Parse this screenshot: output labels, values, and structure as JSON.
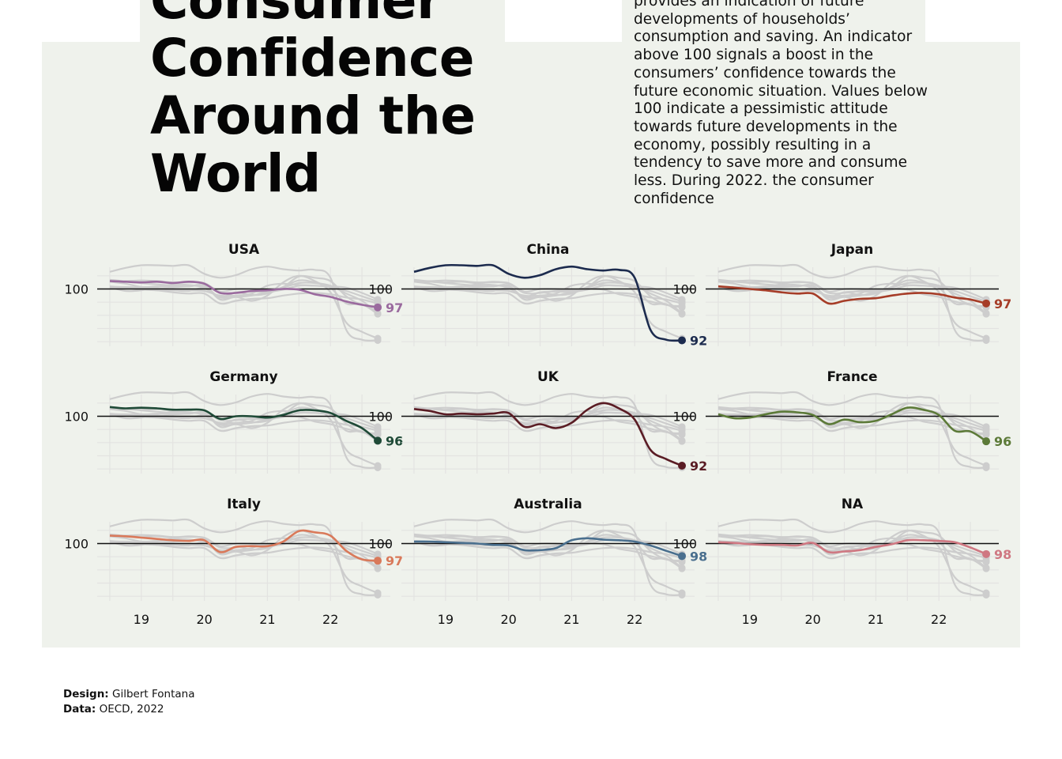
{
  "title": "Consumer Confidence Around the World",
  "description": "provides an indication of future developments of households’ consumption and saving. An indicator above 100 signals a boost in the consumers’ confidence towards the future economic situation. Values below 100 indicate a pessimistic attitude towards future developments in the economy, possibly resulting in a tendency to save more and consume less. During 2022. the consumer confidence",
  "credits": {
    "design_label": "Design:",
    "design_value": "Gilbert Fontana",
    "data_label": "Data:",
    "data_value": "OECD, 2022"
  },
  "colors": {
    "background": "#eff2ec",
    "context_lines": "#cdcdcd",
    "reference_line": "#111111",
    "USA": "#9a6a9e",
    "China": "#1c2b4e",
    "Japan": "#a63d28",
    "Germany": "#1f4a37",
    "UK": "#5a1c24",
    "France": "#5c7a38",
    "Italy": "#d9795a",
    "Australia": "#4a6f8e",
    "NA": "#cf7882"
  },
  "chart_data": {
    "type": "line",
    "layout": "small-multiples",
    "x": [
      2018.5,
      2018.75,
      2019.0,
      2019.25,
      2019.5,
      2019.75,
      2020.0,
      2020.25,
      2020.5,
      2020.75,
      2021.0,
      2021.25,
      2021.5,
      2021.75,
      2022.0,
      2022.25,
      2022.5,
      2022.75
    ],
    "x_ticks": [
      2019,
      2020,
      2021,
      2022
    ],
    "x_tick_labels": [
      "19",
      "20",
      "21",
      "22"
    ],
    "xlim": [
      2018.3,
      2022.95
    ],
    "y_ticks": [
      100
    ],
    "y_tick_labels": [
      "100"
    ],
    "ylim": [
      91.3,
      103.3
    ],
    "reference_line": 100,
    "grid": true,
    "series": [
      {
        "name": "USA",
        "end_label": "97",
        "values": [
          101.2,
          101.1,
          101.0,
          101.1,
          100.9,
          101.1,
          100.8,
          99.4,
          99.4,
          99.7,
          99.8,
          100.0,
          99.9,
          99.2,
          98.8,
          98.1,
          97.6,
          97.2
        ]
      },
      {
        "name": "China",
        "end_label": "92",
        "values": [
          102.6,
          103.2,
          103.6,
          103.6,
          103.5,
          103.6,
          102.3,
          101.7,
          102.1,
          103.0,
          103.4,
          103.0,
          102.8,
          102.9,
          101.7,
          93.8,
          92.3,
          92.2
        ]
      },
      {
        "name": "Japan",
        "end_label": "97",
        "values": [
          100.4,
          100.2,
          100.0,
          99.8,
          99.5,
          99.3,
          99.3,
          97.8,
          98.2,
          98.5,
          98.6,
          99.0,
          99.3,
          99.4,
          99.2,
          98.7,
          98.4,
          97.8
        ]
      },
      {
        "name": "Germany",
        "end_label": "96",
        "values": [
          101.4,
          101.2,
          101.3,
          101.2,
          101.0,
          101.0,
          100.9,
          99.6,
          100.0,
          100.0,
          99.8,
          100.2,
          100.9,
          100.9,
          100.5,
          99.3,
          98.2,
          96.3
        ]
      },
      {
        "name": "UK",
        "end_label": "92",
        "values": [
          101.1,
          100.8,
          100.3,
          100.4,
          100.3,
          100.4,
          100.5,
          98.4,
          98.8,
          98.2,
          99.0,
          101.0,
          102.0,
          101.2,
          99.5,
          94.9,
          93.5,
          92.5
        ]
      },
      {
        "name": "France",
        "end_label": "96",
        "values": [
          100.3,
          99.7,
          99.8,
          100.3,
          100.7,
          100.6,
          100.2,
          98.8,
          99.5,
          99.1,
          99.3,
          100.3,
          101.3,
          101.0,
          100.2,
          97.8,
          97.7,
          96.2
        ]
      },
      {
        "name": "Italy",
        "end_label": "97",
        "values": [
          101.2,
          101.1,
          100.9,
          100.7,
          100.5,
          100.4,
          100.5,
          98.7,
          99.5,
          99.6,
          99.6,
          100.3,
          101.9,
          101.7,
          101.2,
          98.9,
          97.6,
          97.4
        ]
      },
      {
        "name": "Australia",
        "end_label": "98",
        "values": [
          100.3,
          100.3,
          100.2,
          100.1,
          100.0,
          99.8,
          99.7,
          99.0,
          99.0,
          99.3,
          100.5,
          100.8,
          100.6,
          100.5,
          100.3,
          99.7,
          98.9,
          98.1
        ]
      },
      {
        "name": "NA",
        "end_label": "98",
        "values": [
          100.2,
          100.1,
          99.9,
          99.8,
          99.8,
          99.7,
          100.1,
          98.7,
          98.8,
          99.0,
          99.5,
          99.9,
          100.5,
          100.5,
          100.4,
          100.2,
          99.4,
          98.4
        ]
      }
    ]
  }
}
